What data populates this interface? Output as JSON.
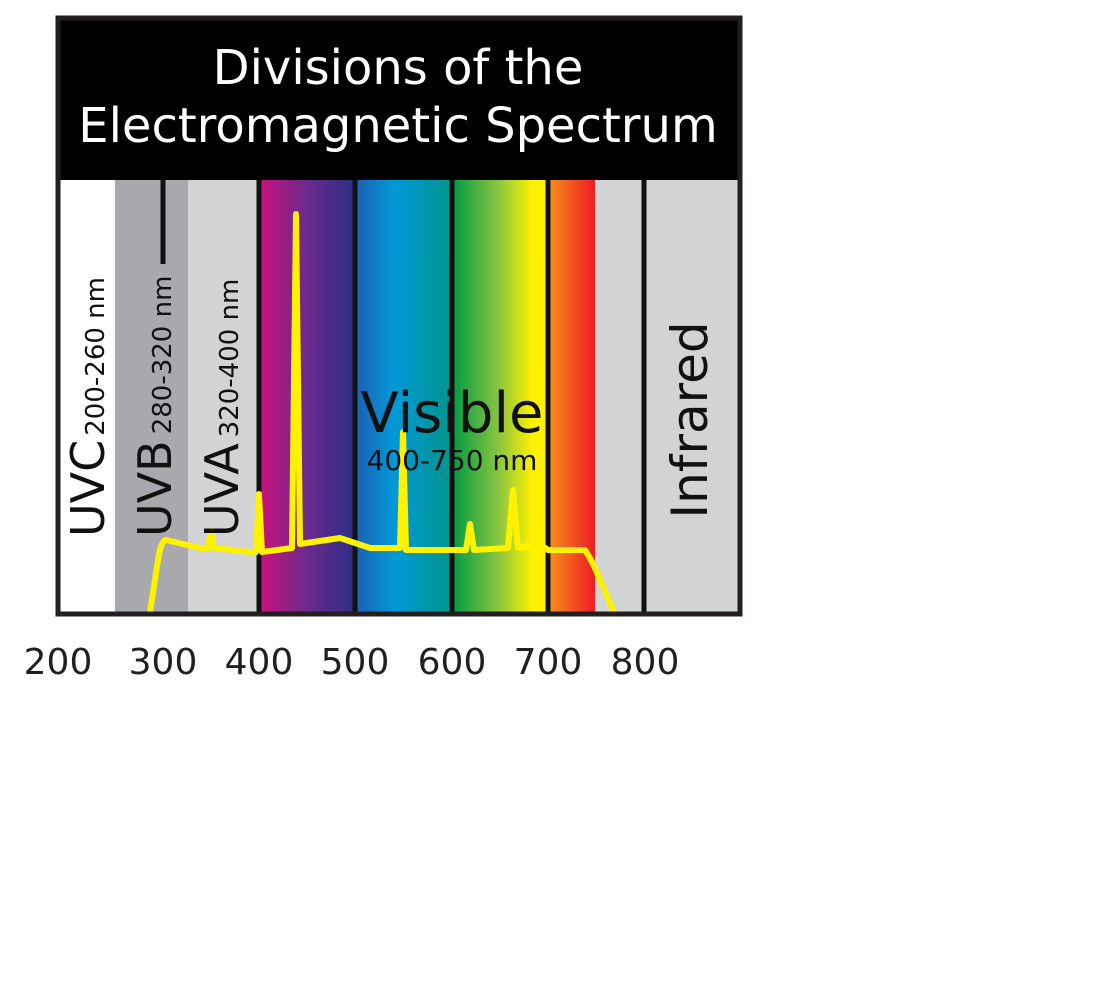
{
  "header": {
    "title_lines": [
      "Divisions of the",
      "Electromagnetic Spectrum"
    ]
  },
  "bands": [
    {
      "name": "UVC",
      "range": "200-260 nm"
    },
    {
      "name": "UVB",
      "range": "280-320 nm"
    },
    {
      "name": "UVA",
      "range": "320-400 nm"
    }
  ],
  "visible": {
    "name": "Visible",
    "range": "400-750 nm"
  },
  "infrared": {
    "name": "Infrared"
  },
  "axis_labels": [
    200,
    300,
    400,
    500,
    600,
    700,
    800
  ]
}
